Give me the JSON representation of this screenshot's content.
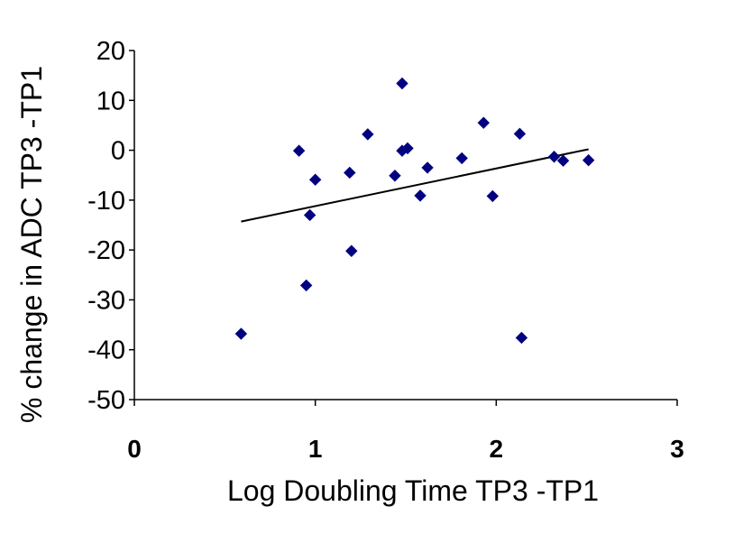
{
  "chart_data": {
    "type": "scatter",
    "title": "",
    "xlabel": "Log Doubling Time TP3 -TP1",
    "ylabel": "% change in ADC TP3 -TP1",
    "xlim": [
      0,
      3
    ],
    "ylim": [
      -50,
      20
    ],
    "x_ticks": [
      0,
      1,
      2,
      3
    ],
    "y_ticks": [
      20,
      10,
      0,
      -10,
      -20,
      -30,
      -40,
      -50
    ],
    "x_tick_labels": [
      "0",
      "1",
      "2",
      "3"
    ],
    "y_tick_labels": [
      "20",
      "10",
      "0",
      "-10",
      "-20",
      "-30",
      "-40",
      "-50"
    ],
    "grid": false,
    "legend": "none",
    "marker": "diamond",
    "marker_color": "#000080",
    "series": [
      {
        "points": [
          {
            "x": 0.59,
            "y": -36.8
          },
          {
            "x": 0.91,
            "y": -0.1
          },
          {
            "x": 0.95,
            "y": -27.1
          },
          {
            "x": 0.97,
            "y": -13.0
          },
          {
            "x": 1.0,
            "y": -5.9
          },
          {
            "x": 1.19,
            "y": -4.5
          },
          {
            "x": 1.2,
            "y": -20.2
          },
          {
            "x": 1.29,
            "y": 3.2
          },
          {
            "x": 1.44,
            "y": -5.1
          },
          {
            "x": 1.48,
            "y": 13.4
          },
          {
            "x": 1.48,
            "y": -0.1
          },
          {
            "x": 1.51,
            "y": 0.4
          },
          {
            "x": 1.58,
            "y": -9.1
          },
          {
            "x": 1.62,
            "y": -3.5
          },
          {
            "x": 1.81,
            "y": -1.6
          },
          {
            "x": 1.93,
            "y": 5.5
          },
          {
            "x": 1.98,
            "y": -9.2
          },
          {
            "x": 2.13,
            "y": 3.3
          },
          {
            "x": 2.14,
            "y": -37.6
          },
          {
            "x": 2.32,
            "y": -1.3
          },
          {
            "x": 2.37,
            "y": -2.1
          },
          {
            "x": 2.51,
            "y": -2.0
          }
        ]
      }
    ],
    "trendline": {
      "type": "linear",
      "x": [
        0.59,
        2.51
      ],
      "y": [
        -14.3,
        0.2
      ],
      "color": "#000000"
    }
  }
}
